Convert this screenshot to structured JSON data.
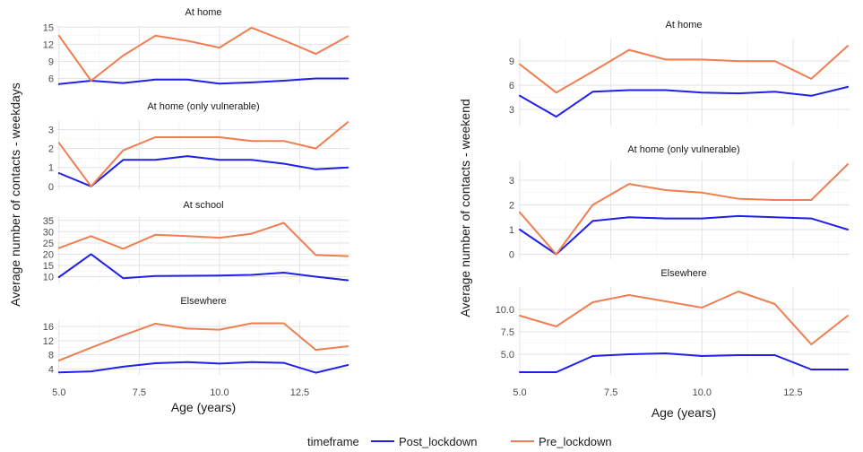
{
  "chart_data": [
    {
      "type": "line",
      "title": "",
      "xlabel": "Age (years)",
      "ylabel": "Average number of contacts - weekdays",
      "x_ticks": [
        "5.0",
        "7.5",
        "10.0",
        "12.5"
      ],
      "x_tick_values": [
        5,
        7.5,
        10,
        12.5
      ],
      "xlim": [
        4.95,
        14.05
      ],
      "grid": true,
      "panels": [
        {
          "title": "At home",
          "ylim": [
            4.5,
            15.2
          ],
          "y_ticks": [
            6,
            9,
            12,
            15
          ],
          "series": [
            {
              "name": "Post_lockdown",
              "color": "#2020e8",
              "x": [
                5,
                6,
                7,
                8,
                9,
                10,
                11,
                12,
                13,
                14
              ],
              "values": [
                5.0,
                5.6,
                5.2,
                5.8,
                5.8,
                5.1,
                5.3,
                5.6,
                6.0,
                6.0
              ]
            },
            {
              "name": "Pre_lockdown",
              "color": "#f07e50",
              "x": [
                5,
                6,
                7,
                8,
                9,
                10,
                11,
                12,
                13,
                14
              ],
              "values": [
                13.5,
                5.6,
                10.0,
                13.5,
                12.6,
                11.4,
                14.9,
                12.7,
                10.3,
                13.4
              ]
            }
          ]
        },
        {
          "title": "At home (only vulnerable)",
          "ylim": [
            -0.2,
            3.5
          ],
          "y_ticks": [
            0,
            1,
            2,
            3
          ],
          "series": [
            {
              "name": "Post_lockdown",
              "color": "#2020e8",
              "x": [
                5,
                6,
                7,
                8,
                9,
                10,
                11,
                12,
                13,
                14
              ],
              "values": [
                0.7,
                0.0,
                1.4,
                1.4,
                1.6,
                1.4,
                1.4,
                1.2,
                0.9,
                1.0
              ]
            },
            {
              "name": "Pre_lockdown",
              "color": "#f07e50",
              "x": [
                5,
                6,
                7,
                8,
                9,
                10,
                11,
                12,
                13,
                14
              ],
              "values": [
                2.3,
                0.0,
                1.9,
                2.6,
                2.6,
                2.6,
                2.4,
                2.4,
                2.0,
                3.4
              ]
            }
          ]
        },
        {
          "title": "At school",
          "ylim": [
            7,
            36.5
          ],
          "y_ticks": [
            10,
            15,
            20,
            25,
            30,
            35
          ],
          "series": [
            {
              "name": "Post_lockdown",
              "color": "#2020e8",
              "x": [
                5,
                6,
                7,
                8,
                9,
                10,
                11,
                12,
                13,
                14
              ],
              "values": [
                9.8,
                20.0,
                9.3,
                10.3,
                10.4,
                10.5,
                10.8,
                11.8,
                10.0,
                8.4
              ]
            },
            {
              "name": "Pre_lockdown",
              "color": "#f07e50",
              "x": [
                5,
                6,
                7,
                8,
                9,
                10,
                11,
                12,
                13,
                14
              ],
              "values": [
                22.7,
                28.0,
                22.4,
                28.6,
                28.0,
                27.3,
                29.1,
                33.9,
                19.6,
                19.1
              ]
            }
          ]
        },
        {
          "title": "Elsewhere",
          "ylim": [
            2.3,
            17.8
          ],
          "y_ticks": [
            4,
            8,
            12,
            16
          ],
          "series": [
            {
              "name": "Post_lockdown",
              "color": "#2020e8",
              "x": [
                5,
                6,
                7,
                8,
                9,
                10,
                11,
                12,
                13,
                14
              ],
              "values": [
                3.0,
                3.3,
                4.6,
                5.6,
                5.9,
                5.5,
                5.9,
                5.7,
                2.9,
                5.1
              ]
            },
            {
              "name": "Pre_lockdown",
              "color": "#f07e50",
              "x": [
                5,
                6,
                7,
                8,
                9,
                10,
                11,
                12,
                13,
                14
              ],
              "values": [
                6.4,
                10.0,
                13.5,
                16.8,
                15.4,
                15.1,
                16.9,
                16.9,
                9.4,
                10.4
              ]
            }
          ]
        }
      ]
    },
    {
      "type": "line",
      "title": "",
      "xlabel": "Age (years)",
      "ylabel": "Average number of contacts - weekend",
      "x_ticks": [
        "5.0",
        "7.5",
        "10.0",
        "12.5"
      ],
      "x_tick_values": [
        5,
        7.5,
        10,
        12.5
      ],
      "xlim": [
        4.95,
        14.05
      ],
      "grid": true,
      "panels": [
        {
          "title": "At home",
          "ylim": [
            1.0,
            11.8
          ],
          "y_ticks": [
            3,
            6,
            9
          ],
          "series": [
            {
              "name": "Post_lockdown",
              "color": "#2020e8",
              "x": [
                5,
                6,
                7,
                8,
                9,
                10,
                11,
                12,
                13,
                14
              ],
              "values": [
                4.7,
                2.1,
                5.2,
                5.4,
                5.4,
                5.1,
                5.0,
                5.2,
                4.7,
                5.8
              ]
            },
            {
              "name": "Pre_lockdown",
              "color": "#f07e50",
              "x": [
                5,
                6,
                7,
                8,
                9,
                10,
                11,
                12,
                13,
                14
              ],
              "values": [
                8.6,
                5.1,
                7.7,
                10.4,
                9.2,
                9.2,
                9.0,
                9.0,
                6.8,
                10.9
              ]
            }
          ]
        },
        {
          "title": "At home (only vulnerable)",
          "ylim": [
            -0.2,
            3.8
          ],
          "y_ticks": [
            0,
            1,
            2,
            3
          ],
          "series": [
            {
              "name": "Post_lockdown",
              "color": "#2020e8",
              "x": [
                5,
                6,
                7,
                8,
                9,
                10,
                11,
                12,
                13,
                14
              ],
              "values": [
                1.0,
                0.0,
                1.35,
                1.5,
                1.45,
                1.45,
                1.55,
                1.5,
                1.45,
                1.0
              ]
            },
            {
              "name": "Pre_lockdown",
              "color": "#f07e50",
              "x": [
                5,
                6,
                7,
                8,
                9,
                10,
                11,
                12,
                13,
                14
              ],
              "values": [
                1.7,
                0.0,
                2.0,
                2.85,
                2.6,
                2.5,
                2.25,
                2.2,
                2.2,
                3.65
              ]
            }
          ]
        },
        {
          "title": "Elsewhere",
          "ylim": [
            2.6,
            12.5
          ],
          "y_ticks": [
            5.0,
            7.5,
            10.0
          ],
          "y_tick_labels": [
            "5.0",
            "7.5",
            "10.0"
          ],
          "series": [
            {
              "name": "Post_lockdown",
              "color": "#2020e8",
              "x": [
                5,
                6,
                7,
                8,
                9,
                10,
                11,
                12,
                13,
                14
              ],
              "values": [
                3.0,
                3.0,
                4.8,
                5.0,
                5.1,
                4.8,
                4.9,
                4.9,
                3.3,
                3.3
              ]
            },
            {
              "name": "Pre_lockdown",
              "color": "#f07e50",
              "x": [
                5,
                6,
                7,
                8,
                9,
                10,
                11,
                12,
                13,
                14
              ],
              "values": [
                9.3,
                8.1,
                10.8,
                11.6,
                10.9,
                10.2,
                12.0,
                10.6,
                6.1,
                9.3
              ]
            }
          ]
        }
      ]
    }
  ],
  "legend": {
    "title": "timeframe",
    "position": "bottom",
    "items": [
      {
        "label": "Post_lockdown",
        "color": "#2020e8"
      },
      {
        "label": "Pre_lockdown",
        "color": "#f07e50"
      }
    ]
  }
}
